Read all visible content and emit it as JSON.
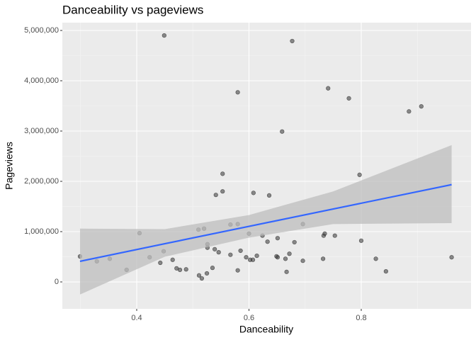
{
  "chart_data": {
    "type": "scatter",
    "title": "Danceability vs pageviews",
    "x_label": "Danceability",
    "y_label": "Pageviews",
    "x": [
      0.299,
      0.329,
      0.352,
      0.382,
      0.405,
      0.423,
      0.442,
      0.448,
      0.449,
      0.464,
      0.471,
      0.477,
      0.488,
      0.51,
      0.511,
      0.516,
      0.52,
      0.525,
      0.526,
      0.526,
      0.535,
      0.539,
      0.541,
      0.546,
      0.553,
      0.553,
      0.567,
      0.567,
      0.58,
      0.58,
      0.58,
      0.585,
      0.595,
      0.6,
      0.602,
      0.607,
      0.608,
      0.614,
      0.624,
      0.633,
      0.636,
      0.649,
      0.651,
      0.651,
      0.659,
      0.665,
      0.667,
      0.672,
      0.677,
      0.681,
      0.696,
      0.696,
      0.732,
      0.733,
      0.735,
      0.741,
      0.753,
      0.778,
      0.797,
      0.8,
      0.826,
      0.844,
      0.885,
      0.907,
      0.961
    ],
    "values": [
      507000,
      410000,
      460000,
      240000,
      970000,
      490000,
      380000,
      610000,
      4900000,
      440000,
      270000,
      240000,
      250000,
      1040000,
      130000,
      70000,
      1060000,
      170000,
      750000,
      680000,
      280000,
      650000,
      1730000,
      590000,
      2150000,
      1800000,
      1140000,
      540000,
      3770000,
      1150000,
      230000,
      620000,
      490000,
      960000,
      440000,
      440000,
      1770000,
      520000,
      920000,
      800000,
      1720000,
      510000,
      490000,
      870000,
      2990000,
      460000,
      200000,
      560000,
      4790000,
      790000,
      420000,
      1150000,
      460000,
      920000,
      960000,
      3850000,
      920000,
      3650000,
      2130000,
      820000,
      460000,
      210000,
      3390000,
      3490000,
      490000
    ],
    "color": "#333333",
    "fit": {
      "color": "#3366ff",
      "band_color": "#bdbdbd",
      "x": [
        0.299,
        0.45,
        0.6,
        0.75,
        0.961
      ],
      "values": [
        410000,
        760000,
        1105000,
        1450000,
        1935000
      ],
      "lower": [
        -250000,
        500000,
        880000,
        1150000,
        1170000
      ],
      "upper": [
        1060000,
        1050000,
        1330000,
        1800000,
        2720000
      ]
    },
    "xlim": [
      0.2675,
      0.9956
    ],
    "ylim": [
      -535000,
      5155000
    ],
    "xticks": [
      0.4,
      0.6,
      0.8
    ],
    "yticks": [
      0,
      {
        "value": 1000000,
        "label": "1,000,000"
      },
      {
        "value": 2000000,
        "label": "2,000,000"
      },
      {
        "value": 3000000,
        "label": "3,000,000"
      },
      {
        "value": 4000000,
        "label": "4,000,000"
      },
      {
        "value": 5000000,
        "label": "5,000,000"
      }
    ],
    "grid": true
  }
}
